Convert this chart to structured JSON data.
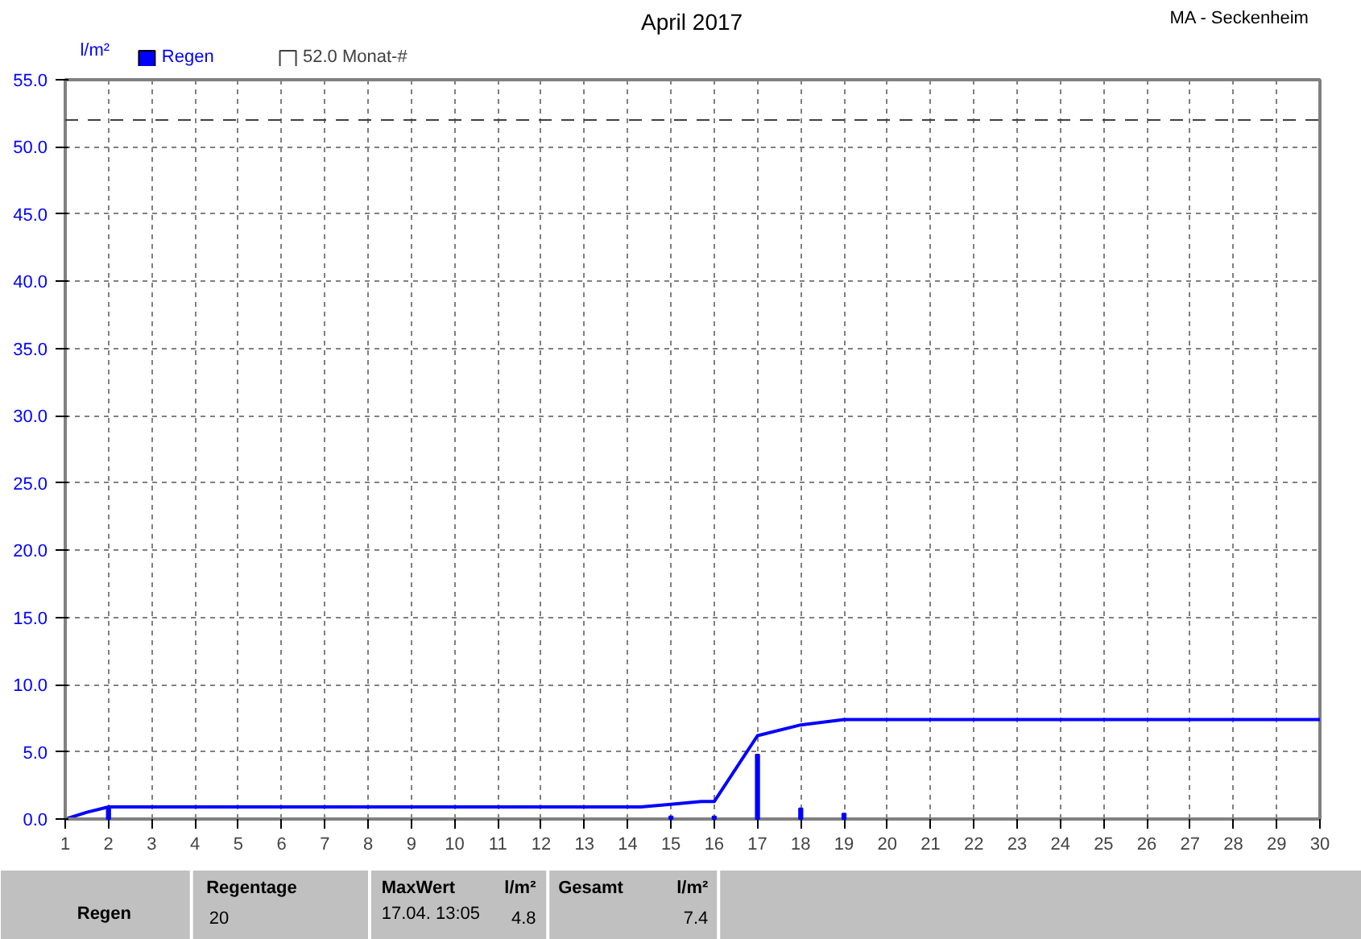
{
  "chart_data": {
    "type": "bar",
    "title": "April 2017",
    "ylabel": "l/m²",
    "x": [
      2,
      15,
      16,
      17,
      18,
      19
    ],
    "series": [
      {
        "name": "Regen",
        "color": "#0000ff",
        "values": [
          0.9,
          0.2,
          0.2,
          4.8,
          0.8,
          0.4
        ]
      },
      {
        "type": "line",
        "color": "#0000ff",
        "x": [
          1,
          1.5,
          2,
          14.3,
          15,
          15.7,
          16,
          17,
          18,
          19,
          30
        ],
        "values": [
          0,
          0.5,
          0.9,
          0.9,
          1.1,
          1.3,
          1.3,
          6.2,
          7.0,
          7.4,
          7.4
        ]
      }
    ],
    "xlim": [
      1,
      30
    ],
    "xticks": [
      1,
      2,
      3,
      4,
      5,
      6,
      7,
      8,
      9,
      10,
      11,
      12,
      13,
      14,
      15,
      16,
      17,
      18,
      19,
      20,
      21,
      22,
      23,
      24,
      25,
      26,
      27,
      28,
      29,
      30
    ],
    "ylim": [
      0,
      55
    ],
    "yticks": [
      {
        "value": 0,
        "label": "0.0"
      },
      {
        "value": 5,
        "label": "5.0"
      },
      {
        "value": 10,
        "label": "10.0"
      },
      {
        "value": 15,
        "label": "15.0"
      },
      {
        "value": 20,
        "label": "20.0"
      },
      {
        "value": 25,
        "label": "25.0"
      },
      {
        "value": 30,
        "label": "30.0"
      },
      {
        "value": 35,
        "label": "35.0"
      },
      {
        "value": 40,
        "label": "40.0"
      },
      {
        "value": 45,
        "label": "45.0"
      },
      {
        "value": 50,
        "label": "50.0"
      },
      {
        "value": 55,
        "label": "55.0"
      }
    ],
    "ref_lines": [
      {
        "axis": "y",
        "value": 52,
        "label": "52.0 Monat-#",
        "color": "#404040",
        "line_style": "dashed"
      }
    ],
    "grid": true,
    "legend": "top left",
    "annotations": [
      "MA - Seckenheim",
      "Regen",
      "Regentage",
      "20",
      "MaxWert",
      "l/m²",
      "17.04.  13:05",
      "4.8",
      "Gesamt",
      "l/m²",
      "7.4"
    ]
  }
}
